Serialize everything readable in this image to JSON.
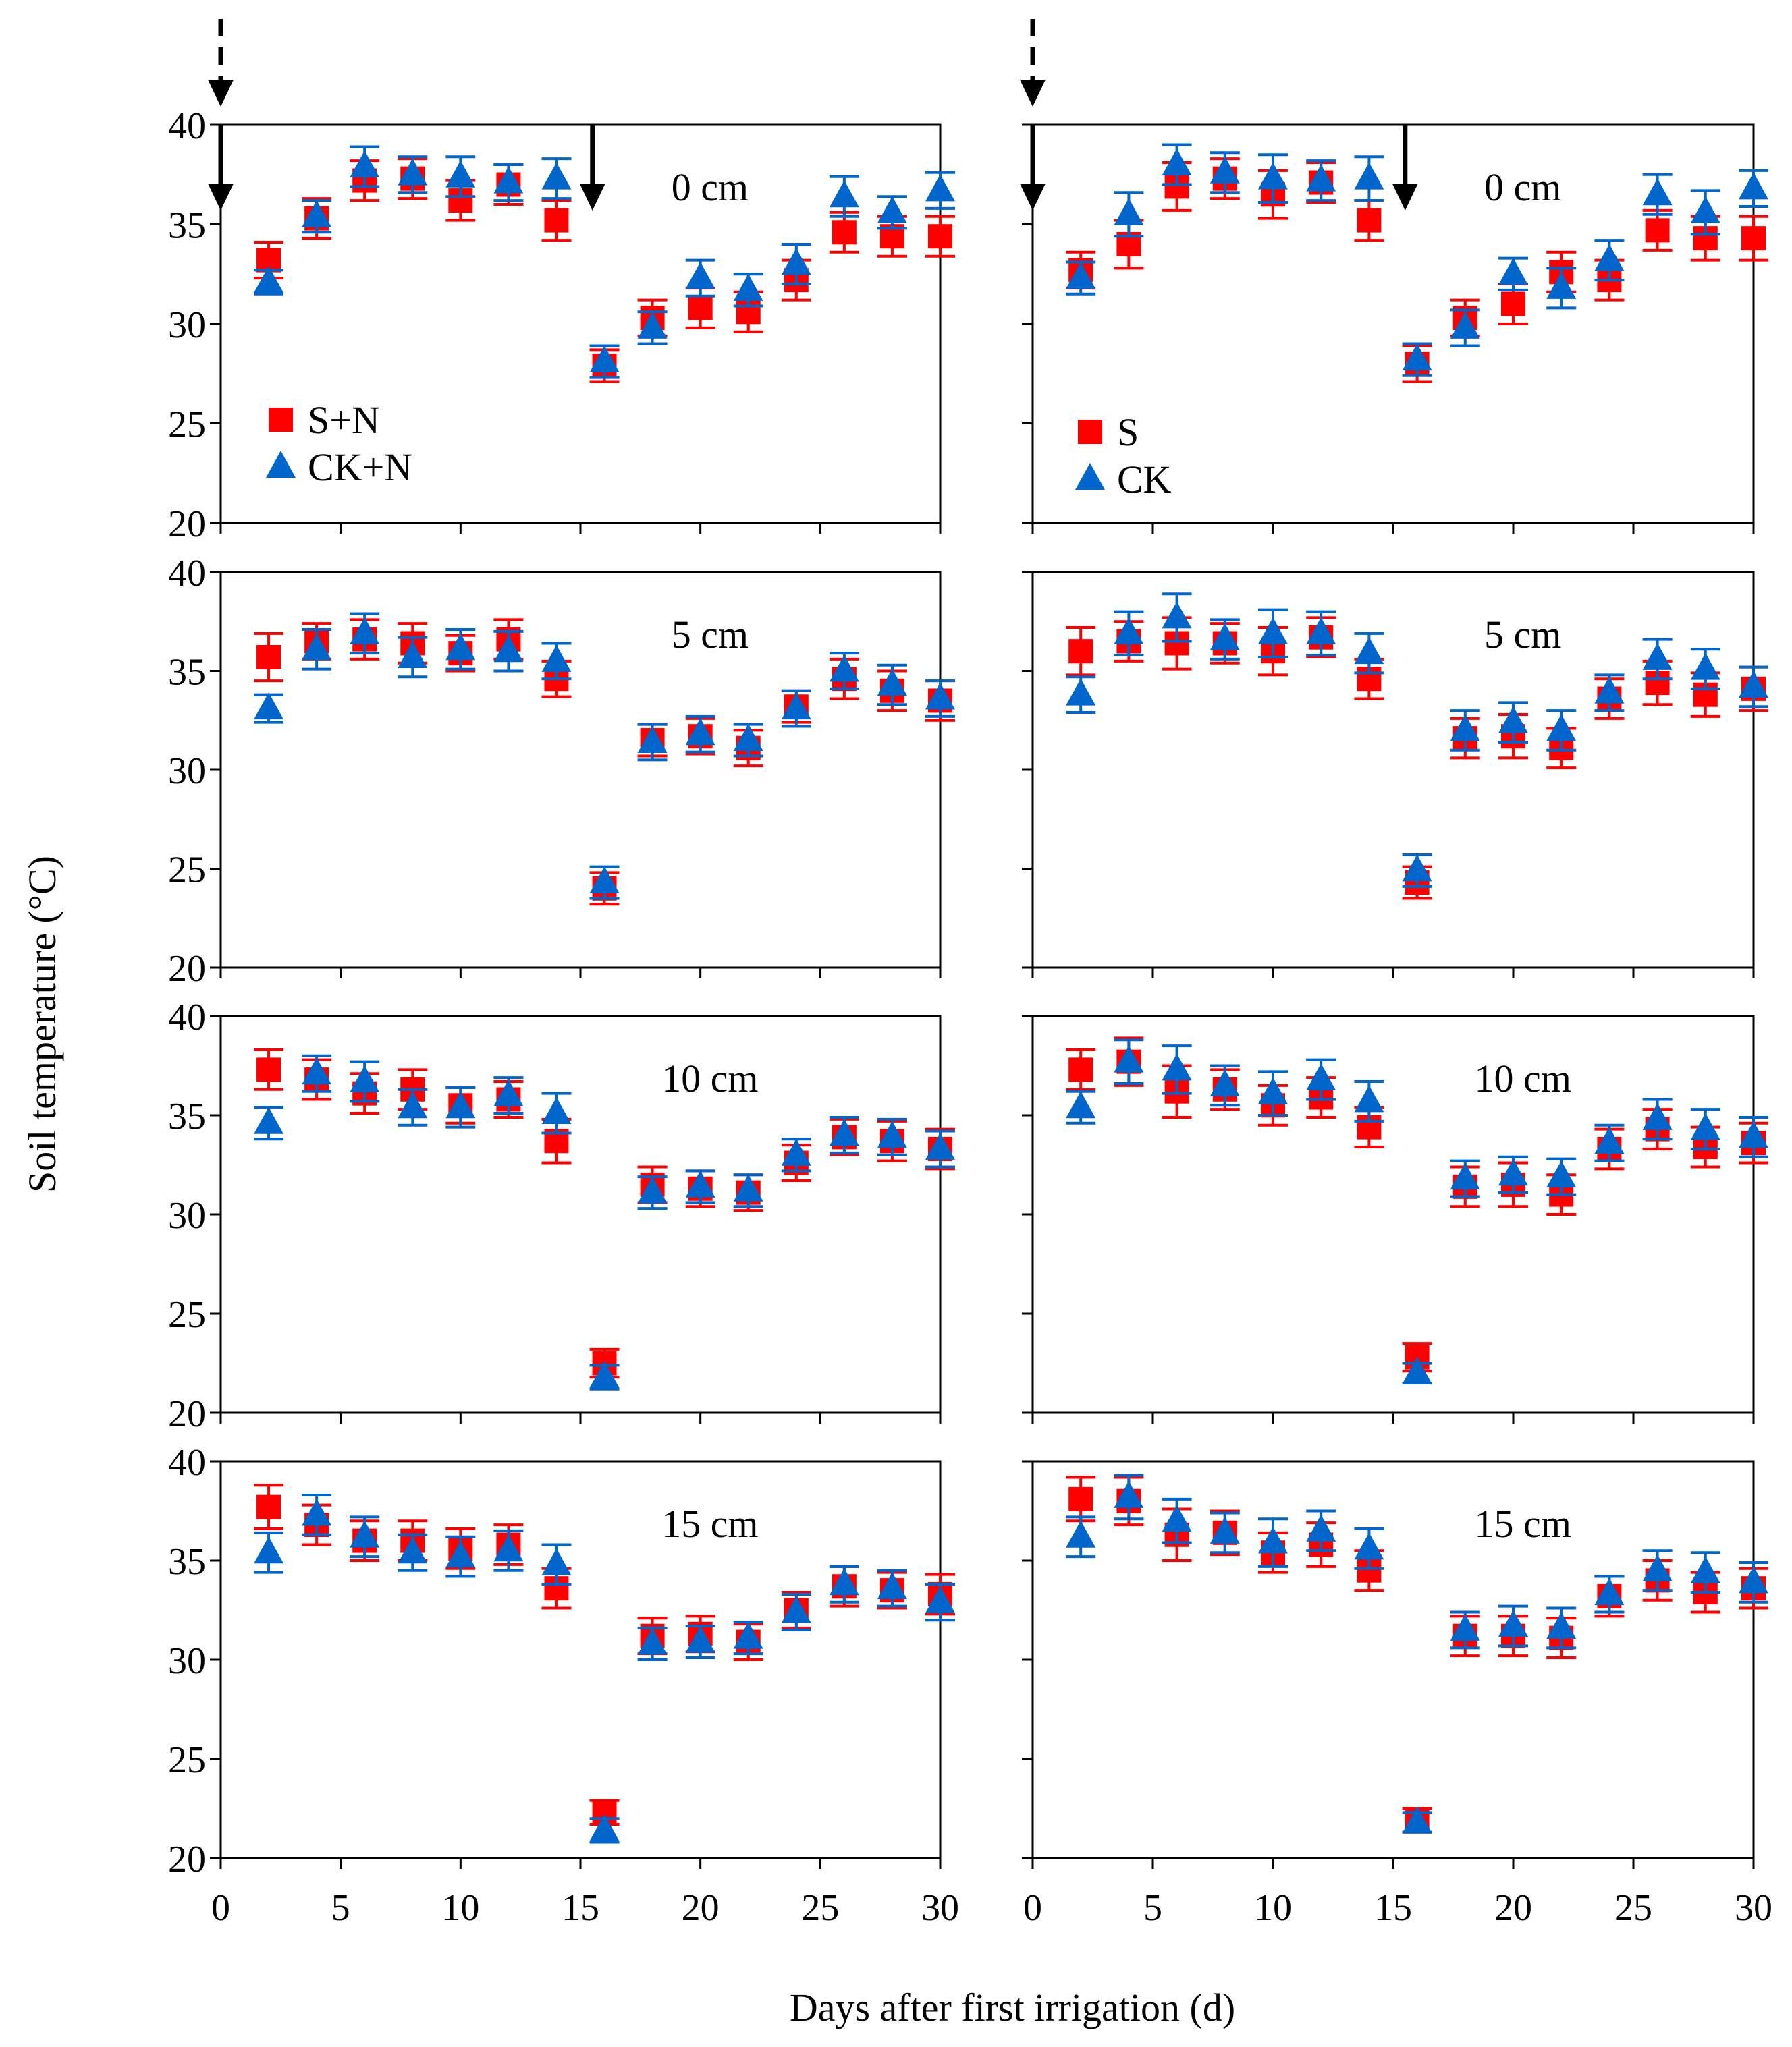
{
  "colors": {
    "square_series": "#ff0000",
    "triangle_series": "#0066cc",
    "arrows": "#000000"
  },
  "axes": {
    "xlabel": "Days after first irrigation  (d)",
    "ylabel": "Soil temperature (°C)",
    "xlim": [
      0,
      30
    ],
    "ylim": [
      20,
      40
    ],
    "xticks": [
      0,
      5,
      10,
      15,
      20,
      25,
      30
    ],
    "yticks": [
      20,
      25,
      30,
      35,
      40
    ],
    "grid": false
  },
  "legends": [
    {
      "panel": "left",
      "entries": [
        {
          "name": "S+N",
          "marker": "square"
        },
        {
          "name": "CK+N",
          "marker": "triangle"
        }
      ]
    },
    {
      "panel": "right",
      "entries": [
        {
          "name": "S",
          "marker": "square"
        },
        {
          "name": "CK",
          "marker": "triangle"
        }
      ]
    }
  ],
  "irrigation_arrows": {
    "dashed_day": 0,
    "solid_days": [
      0,
      15.5
    ]
  },
  "chart_data": [
    {
      "type": "scatter",
      "column": "left",
      "depth": "0 cm",
      "x": [
        2,
        4,
        6,
        8,
        10,
        12,
        14,
        16,
        18,
        20,
        22,
        24,
        26,
        28,
        30
      ],
      "series": [
        {
          "name": "S+N",
          "marker": "square",
          "values": [
            33.2,
            35.3,
            37.2,
            37.3,
            36.2,
            37.0,
            35.2,
            27.9,
            30.3,
            30.8,
            30.6,
            32.2,
            34.6,
            34.4,
            34.4
          ],
          "error": [
            0.9,
            1.0,
            1.0,
            1.0,
            1.0,
            1.0,
            1.0,
            0.8,
            0.9,
            1.0,
            1.0,
            1.0,
            1.0,
            1.0,
            1.0
          ]
        },
        {
          "name": "CK+N",
          "marker": "triangle",
          "values": [
            32.1,
            35.4,
            37.9,
            37.5,
            37.4,
            37.1,
            37.3,
            28.1,
            29.8,
            32.3,
            31.7,
            33.0,
            36.4,
            35.6,
            36.7
          ],
          "error": [
            0.6,
            0.8,
            1.0,
            0.9,
            1.0,
            0.9,
            1.0,
            0.8,
            0.8,
            0.9,
            0.8,
            1.0,
            1.0,
            0.8,
            0.9
          ]
        }
      ]
    },
    {
      "type": "scatter",
      "column": "right",
      "depth": "0 cm",
      "x": [
        2,
        4,
        6,
        8,
        10,
        12,
        14,
        16,
        18,
        20,
        22,
        24,
        26,
        28,
        30
      ],
      "series": [
        {
          "name": "S",
          "marker": "square",
          "values": [
            32.7,
            34.0,
            36.9,
            37.3,
            36.5,
            37.1,
            35.2,
            28.0,
            30.3,
            31.0,
            32.6,
            32.2,
            34.7,
            34.3,
            34.3
          ],
          "error": [
            0.9,
            1.2,
            1.2,
            1.0,
            1.2,
            1.0,
            1.0,
            0.9,
            0.9,
            1.0,
            1.0,
            1.0,
            1.0,
            1.1,
            1.1
          ]
        },
        {
          "name": "CK",
          "marker": "triangle",
          "values": [
            32.3,
            35.5,
            38.0,
            37.6,
            37.3,
            37.2,
            37.3,
            28.2,
            29.8,
            32.5,
            31.8,
            33.2,
            36.5,
            35.6,
            36.8
          ],
          "error": [
            0.8,
            1.1,
            1.0,
            1.0,
            1.2,
            1.0,
            1.1,
            0.8,
            0.9,
            0.8,
            1.0,
            1.0,
            1.0,
            1.1,
            0.9
          ]
        }
      ]
    },
    {
      "type": "scatter",
      "column": "left",
      "depth": "5 cm",
      "x": [
        2,
        4,
        6,
        8,
        10,
        12,
        14,
        16,
        18,
        20,
        22,
        24,
        26,
        28,
        30
      ],
      "series": [
        {
          "name": "S+N",
          "marker": "square",
          "values": [
            35.7,
            36.5,
            36.6,
            36.4,
            35.9,
            36.6,
            34.6,
            24.0,
            31.5,
            31.7,
            31.1,
            33.2,
            34.6,
            34.0,
            33.5
          ],
          "error": [
            1.2,
            0.9,
            1.0,
            1.0,
            0.9,
            1.0,
            0.9,
            0.8,
            0.8,
            0.9,
            0.9,
            0.8,
            1.0,
            1.0,
            1.0
          ]
        },
        {
          "name": "CK+N",
          "marker": "triangle",
          "values": [
            33.1,
            36.1,
            36.9,
            35.7,
            36.1,
            36.0,
            35.5,
            24.3,
            31.4,
            31.8,
            31.5,
            33.1,
            35.0,
            34.3,
            33.6
          ],
          "error": [
            0.7,
            1.0,
            1.0,
            1.0,
            1.0,
            1.0,
            0.9,
            0.8,
            0.9,
            0.9,
            0.8,
            0.9,
            0.9,
            1.0,
            0.9
          ]
        }
      ]
    },
    {
      "type": "scatter",
      "column": "right",
      "depth": "5 cm",
      "x": [
        2,
        4,
        6,
        8,
        10,
        12,
        14,
        16,
        18,
        20,
        22,
        24,
        26,
        28,
        30
      ],
      "series": [
        {
          "name": "S",
          "marker": "square",
          "values": [
            36.0,
            36.5,
            36.4,
            36.4,
            36.0,
            36.7,
            34.6,
            24.3,
            31.6,
            31.7,
            31.1,
            33.6,
            34.4,
            33.8,
            34.1
          ],
          "error": [
            1.2,
            1.0,
            1.3,
            1.0,
            1.2,
            1.0,
            1.0,
            0.8,
            1.0,
            1.1,
            1.0,
            1.0,
            1.1,
            1.1,
            1.1
          ]
        },
        {
          "name": "CK",
          "marker": "triangle",
          "values": [
            33.8,
            36.9,
            37.7,
            36.6,
            36.9,
            36.9,
            35.9,
            24.9,
            32.0,
            32.4,
            32.0,
            33.9,
            35.6,
            35.1,
            34.2
          ],
          "error": [
            0.9,
            1.1,
            1.2,
            1.0,
            1.2,
            1.1,
            1.0,
            0.8,
            1.0,
            1.0,
            1.0,
            0.9,
            1.0,
            1.0,
            1.0
          ]
        }
      ]
    },
    {
      "type": "scatter",
      "column": "left",
      "depth": "10 cm",
      "x": [
        2,
        4,
        6,
        8,
        10,
        12,
        14,
        16,
        18,
        20,
        22,
        24,
        26,
        28,
        30
      ],
      "series": [
        {
          "name": "S+N",
          "marker": "square",
          "values": [
            37.3,
            36.8,
            36.1,
            36.3,
            35.5,
            35.8,
            33.7,
            22.5,
            31.5,
            31.3,
            31.1,
            32.6,
            33.9,
            33.7,
            33.3
          ],
          "error": [
            1.0,
            1.0,
            1.0,
            1.0,
            0.9,
            0.9,
            1.1,
            0.7,
            0.9,
            0.9,
            0.9,
            0.9,
            0.9,
            1.0,
            1.0
          ]
        },
        {
          "name": "CK+N",
          "marker": "triangle",
          "values": [
            34.6,
            37.1,
            36.7,
            35.4,
            35.4,
            36.0,
            35.1,
            21.8,
            31.1,
            31.4,
            31.2,
            33.0,
            34.0,
            33.9,
            33.3
          ],
          "error": [
            0.8,
            0.9,
            1.0,
            0.9,
            1.0,
            0.9,
            1.0,
            0.6,
            0.8,
            0.8,
            0.8,
            0.8,
            0.9,
            0.9,
            0.9
          ]
        }
      ]
    },
    {
      "type": "scatter",
      "column": "right",
      "depth": "10 cm",
      "x": [
        2,
        4,
        6,
        8,
        10,
        12,
        14,
        16,
        18,
        20,
        22,
        24,
        26,
        28,
        30
      ],
      "series": [
        {
          "name": "S",
          "marker": "square",
          "values": [
            37.3,
            37.7,
            36.2,
            36.3,
            35.5,
            35.9,
            34.4,
            22.8,
            31.4,
            31.5,
            31.0,
            33.3,
            34.3,
            33.4,
            33.6
          ],
          "error": [
            1.0,
            1.2,
            1.3,
            1.0,
            1.0,
            1.0,
            1.0,
            0.7,
            1.0,
            1.1,
            1.0,
            1.0,
            1.0,
            1.0,
            1.0
          ]
        },
        {
          "name": "CK",
          "marker": "triangle",
          "values": [
            35.4,
            37.7,
            37.3,
            36.5,
            36.1,
            36.8,
            35.7,
            22.0,
            31.8,
            32.0,
            31.9,
            33.6,
            34.8,
            34.3,
            33.9
          ],
          "error": [
            0.8,
            1.1,
            1.2,
            1.0,
            1.1,
            1.0,
            1.0,
            0.5,
            0.9,
            0.9,
            0.9,
            0.9,
            1.0,
            1.0,
            1.0
          ]
        }
      ]
    },
    {
      "type": "scatter",
      "column": "left",
      "depth": "15 cm",
      "x": [
        2,
        4,
        6,
        8,
        10,
        12,
        14,
        16,
        18,
        20,
        22,
        24,
        26,
        28,
        30
      ],
      "series": [
        {
          "name": "S+N",
          "marker": "square",
          "values": [
            37.7,
            36.8,
            36.0,
            36.0,
            35.6,
            35.8,
            33.6,
            22.3,
            31.2,
            31.3,
            30.9,
            32.5,
            33.7,
            33.5,
            33.3
          ],
          "error": [
            1.1,
            1.0,
            1.0,
            1.0,
            1.0,
            1.0,
            1.0,
            0.6,
            0.9,
            0.9,
            0.9,
            0.9,
            1.0,
            0.9,
            1.0
          ]
        },
        {
          "name": "CK+N",
          "marker": "triangle",
          "values": [
            35.4,
            37.3,
            36.2,
            35.4,
            35.2,
            35.5,
            34.8,
            21.4,
            30.8,
            30.9,
            31.1,
            32.4,
            33.8,
            33.6,
            32.9
          ],
          "error": [
            1.0,
            1.0,
            1.0,
            0.9,
            1.0,
            1.0,
            1.0,
            0.6,
            0.8,
            0.8,
            0.8,
            0.9,
            0.9,
            0.9,
            0.9
          ]
        }
      ]
    },
    {
      "type": "scatter",
      "column": "right",
      "depth": "15 cm",
      "x": [
        2,
        4,
        6,
        8,
        10,
        12,
        14,
        16,
        18,
        20,
        22,
        24,
        26,
        28,
        30
      ],
      "series": [
        {
          "name": "S",
          "marker": "square",
          "values": [
            38.1,
            38.0,
            36.3,
            36.4,
            35.4,
            35.8,
            34.5,
            21.9,
            31.2,
            31.2,
            31.1,
            33.2,
            34.0,
            33.4,
            33.6
          ],
          "error": [
            1.1,
            1.2,
            1.3,
            1.1,
            1.0,
            1.1,
            1.0,
            0.6,
            1.0,
            1.0,
            1.0,
            1.0,
            1.0,
            1.0,
            1.0
          ]
        },
        {
          "name": "CK",
          "marker": "triangle",
          "values": [
            36.2,
            38.2,
            37.0,
            36.4,
            35.9,
            36.5,
            35.6,
            21.8,
            31.5,
            31.7,
            31.6,
            33.3,
            34.5,
            34.4,
            33.9
          ],
          "error": [
            1.0,
            1.1,
            1.1,
            1.0,
            1.2,
            1.0,
            1.0,
            0.5,
            0.9,
            1.0,
            1.0,
            0.9,
            1.0,
            1.0,
            1.0
          ]
        }
      ]
    }
  ]
}
